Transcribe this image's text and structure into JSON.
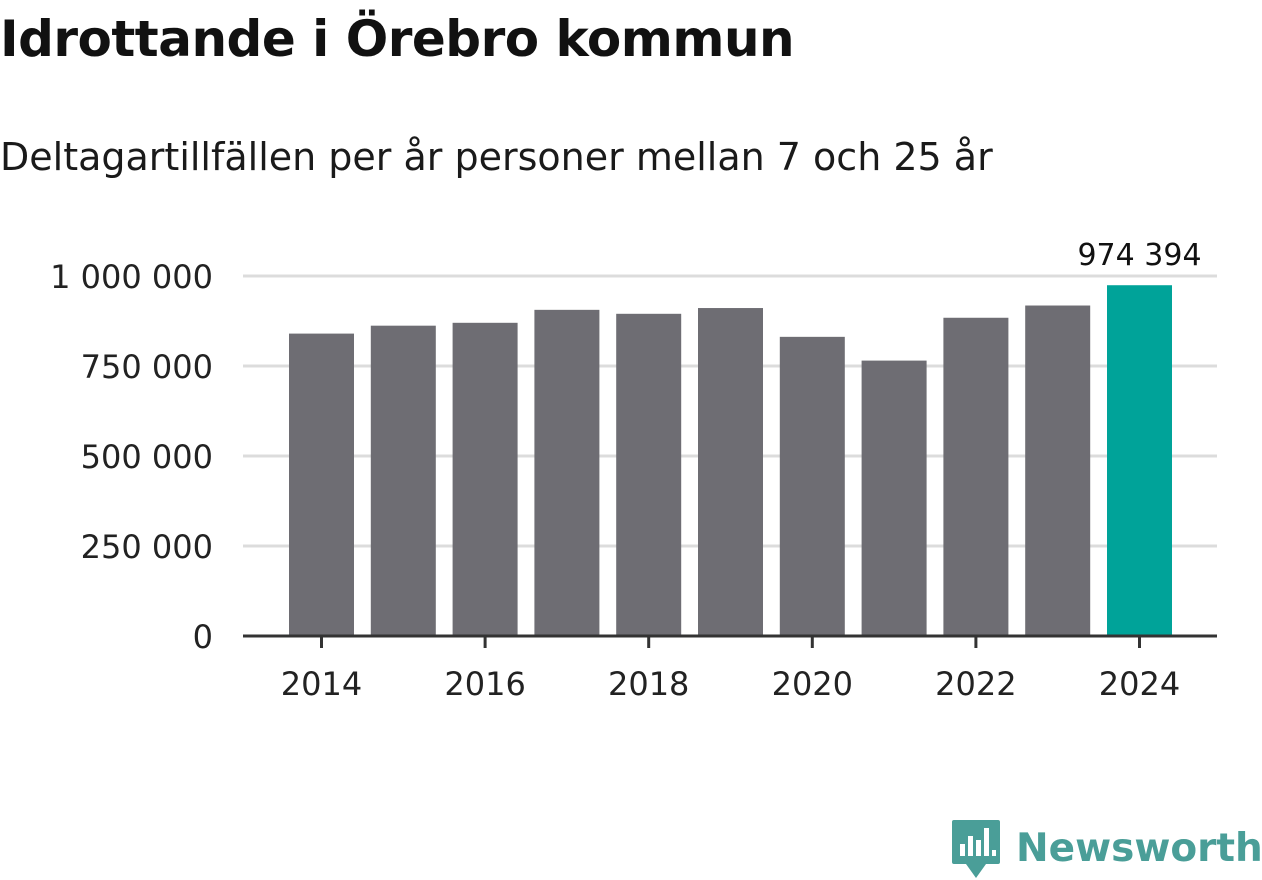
{
  "colors": {
    "bar": "#6e6d73",
    "highlight": "#00a399",
    "grid": "#dcdcdc",
    "axis": "#333333",
    "brand": "#4a9e98"
  },
  "chart_data": {
    "type": "bar",
    "title": "Idrottande i Örebro kommun",
    "subtitle": "Deltagartillfällen per år personer mellan 7 och 25 år",
    "categories": [
      "2014",
      "2015",
      "2016",
      "2017",
      "2018",
      "2019",
      "2020",
      "2021",
      "2022",
      "2023",
      "2024"
    ],
    "values": [
      840000,
      862000,
      870000,
      906000,
      895000,
      911000,
      831000,
      765000,
      884000,
      918000,
      974394
    ],
    "highlight_index": 10,
    "highlight_label": "974 394",
    "ylim": [
      0,
      1000000
    ],
    "y_ticks": [
      {
        "value": 0,
        "label": "0"
      },
      {
        "value": 250000,
        "label": "250 000"
      },
      {
        "value": 500000,
        "label": "500 000"
      },
      {
        "value": 750000,
        "label": "750 000"
      },
      {
        "value": 1000000,
        "label": "1 000 000"
      }
    ],
    "x_ticks": [
      "2014",
      "2016",
      "2018",
      "2020",
      "2022",
      "2024"
    ],
    "xlabel": "",
    "ylabel": "",
    "grid": true
  },
  "footer": {
    "brand_name": "Newsworthy",
    "brand_icon": "newsworthy-logo-icon"
  }
}
